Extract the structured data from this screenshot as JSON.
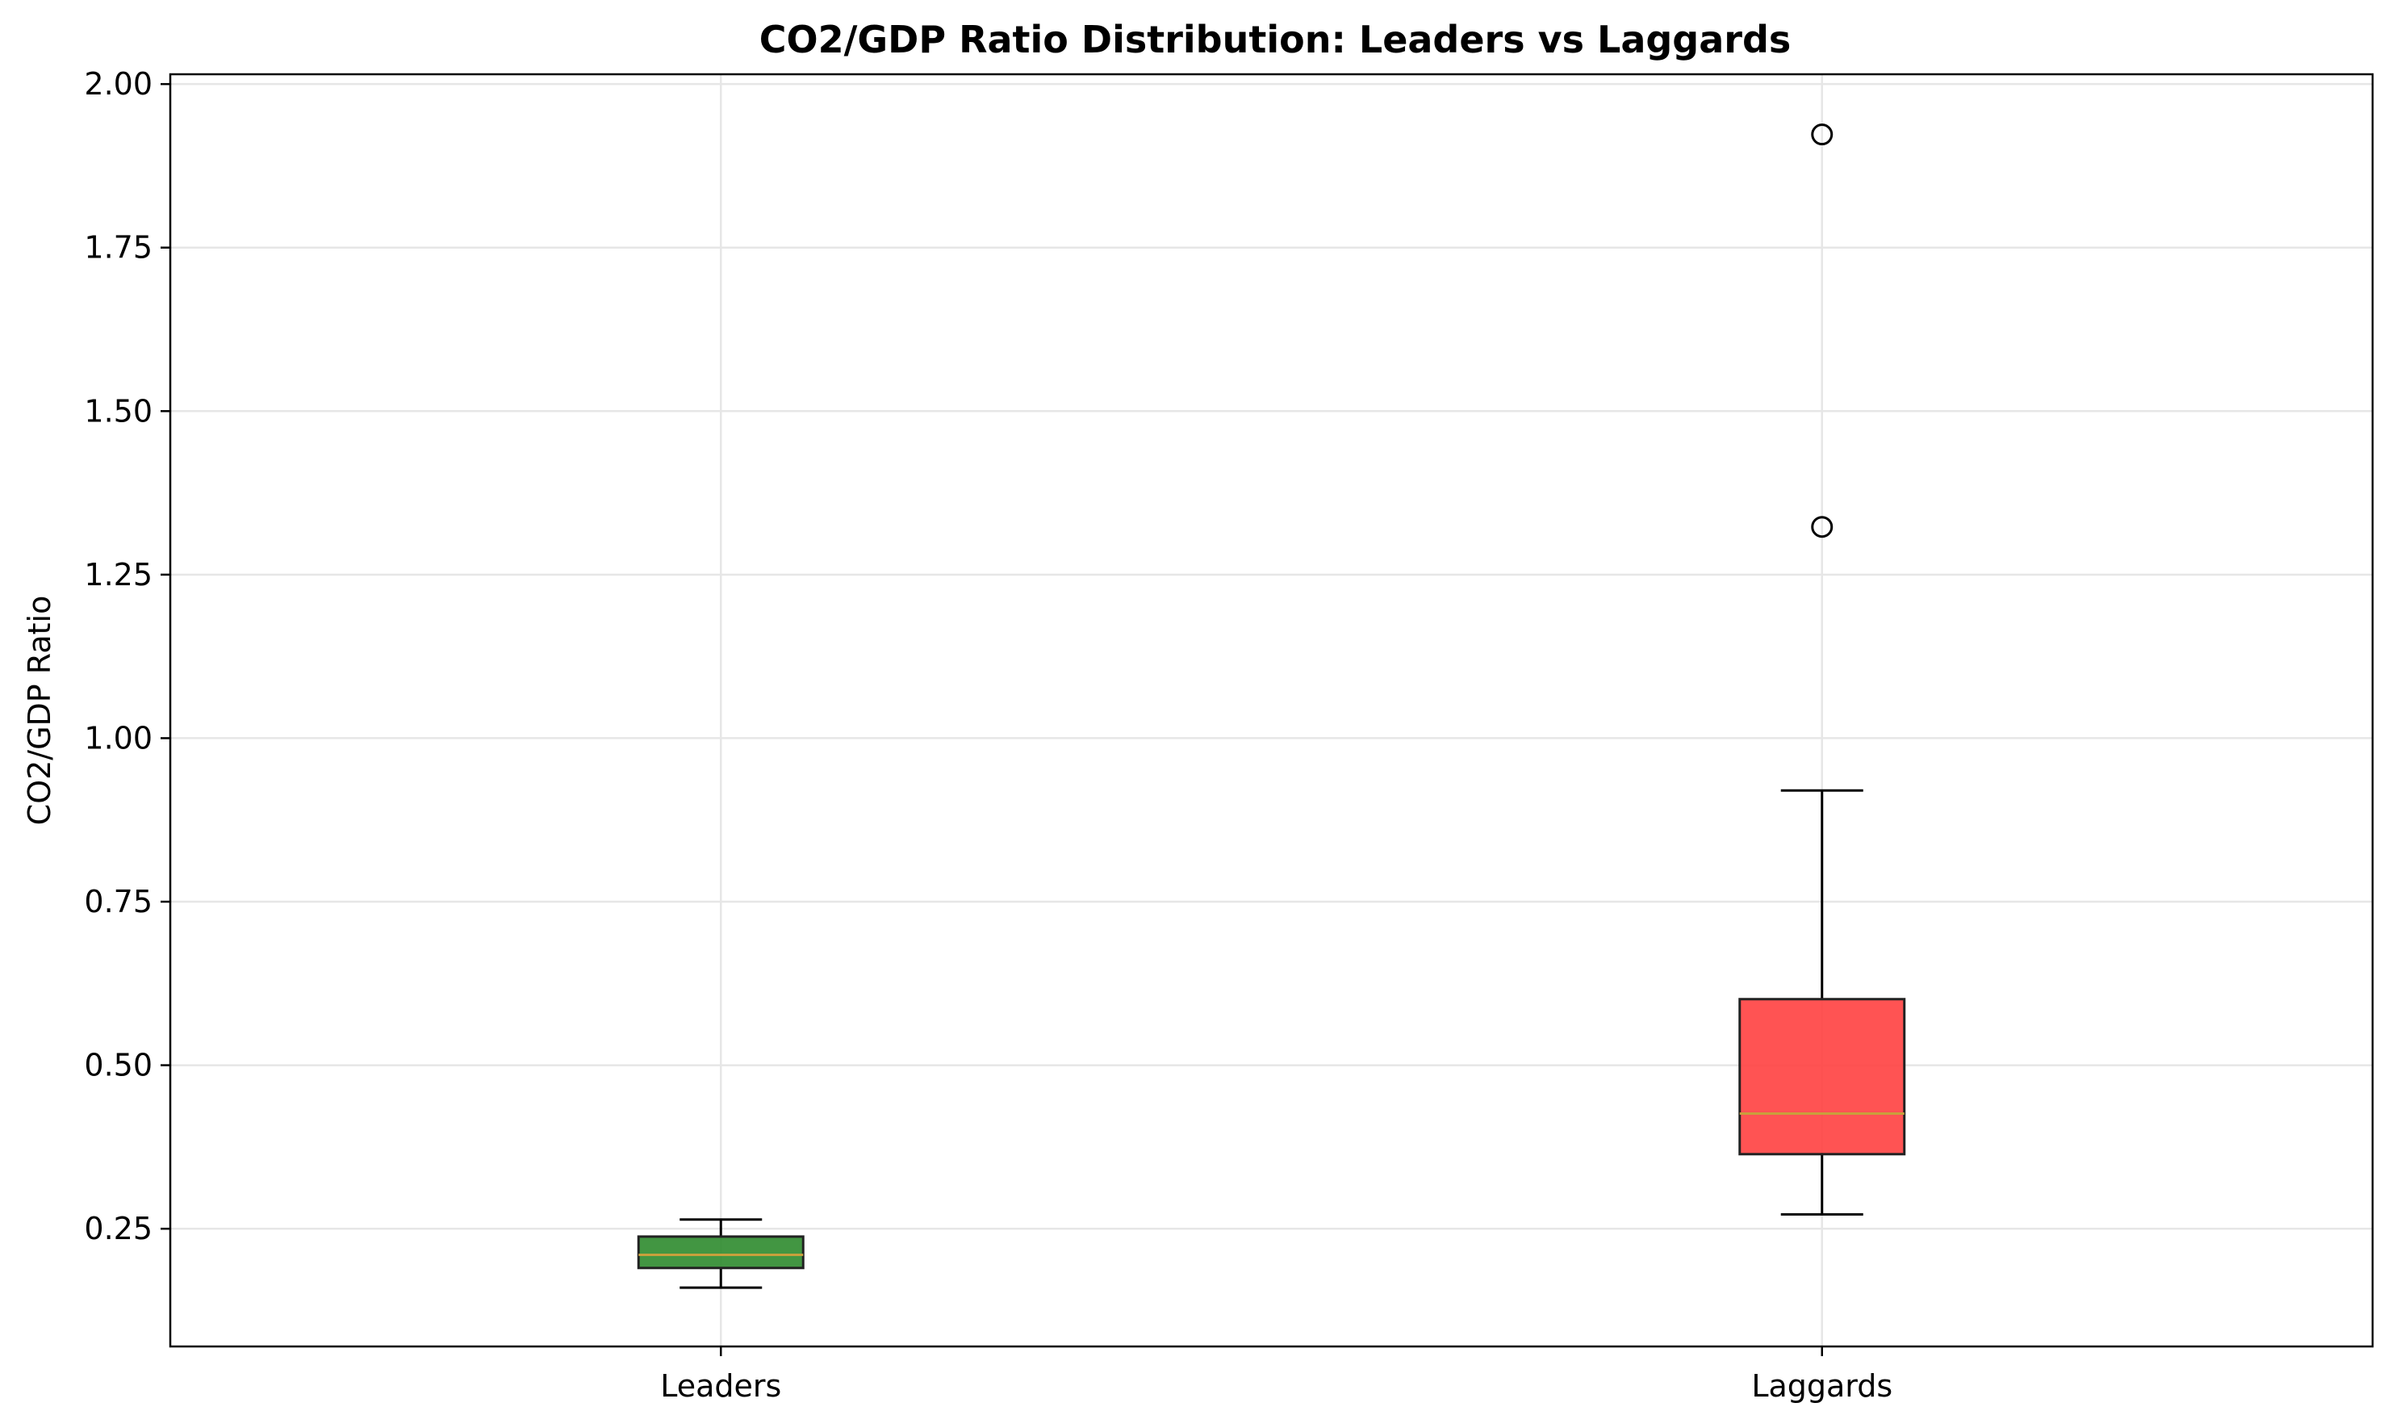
{
  "chart_data": {
    "type": "box",
    "title": "CO2/GDP Ratio Distribution: Leaders vs Laggards",
    "xlabel": "",
    "ylabel": "CO2/GDP Ratio",
    "ylim": [
      0.07,
      2.015
    ],
    "yticks": [
      0.25,
      0.5,
      0.75,
      1.0,
      1.25,
      1.5,
      1.75,
      2.0
    ],
    "ytick_labels": [
      "0.25",
      "0.50",
      "0.75",
      "1.00",
      "1.25",
      "1.50",
      "1.75",
      "2.00"
    ],
    "grid": true,
    "categories": [
      "Leaders",
      "Laggards"
    ],
    "boxes": [
      {
        "label": "Leaders",
        "whisker_low": 0.16,
        "q1": 0.19,
        "median": 0.21,
        "q3": 0.238,
        "whisker_high": 0.264,
        "outliers": [],
        "color": "#2e8b2e"
      },
      {
        "label": "Laggards",
        "whisker_low": 0.272,
        "q1": 0.364,
        "median": 0.426,
        "q3": 0.601,
        "whisker_high": 0.92,
        "outliers": [
          1.323,
          1.923
        ],
        "color": "#ff4040"
      }
    ],
    "median_color": "#c8a03c"
  }
}
